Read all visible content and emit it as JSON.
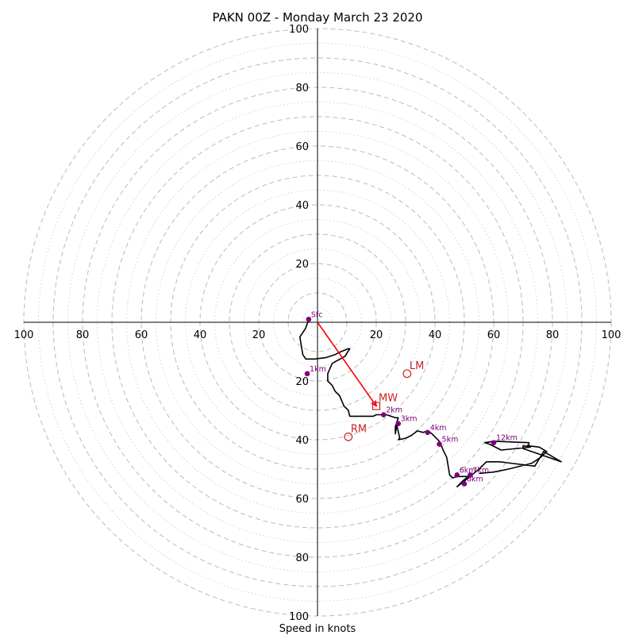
{
  "chart_data": {
    "type": "line",
    "title": "PAKN 00Z - Monday March 23 2020",
    "xlabel": "Speed in knots",
    "ylabel": "",
    "xlim": [
      -100,
      100
    ],
    "ylim": [
      -100,
      100
    ],
    "axis_tick_labels": {
      "right": [
        "20",
        "40",
        "60",
        "80",
        "100"
      ],
      "left": [
        "100",
        "80",
        "60",
        "40",
        "20"
      ],
      "up": [
        "20",
        "40",
        "60",
        "80",
        "100"
      ],
      "down": [
        "20",
        "40",
        "60",
        "80",
        "100"
      ]
    },
    "rings_dashed": [
      10,
      20,
      30,
      40,
      50,
      60,
      70,
      80,
      90,
      100
    ],
    "rings_dotted": [
      5,
      15,
      25,
      35,
      45,
      55,
      65,
      75,
      85,
      95
    ],
    "grid": true,
    "colors": {
      "trace": "#000000",
      "height_markers": "#800080",
      "motion": "#cc2222",
      "mean_wind_arrow": "#ff0000",
      "rings": "#bbbbbb"
    },
    "series": [
      {
        "type": "line",
        "points": [
          [
            -3,
            1
          ],
          [
            -4,
            -2
          ],
          [
            -6,
            -5
          ],
          [
            -5.5,
            -8
          ],
          [
            -5,
            -11
          ],
          [
            -4,
            -12.5
          ],
          [
            -1,
            -12.5
          ],
          [
            3,
            -12
          ],
          [
            6,
            -11
          ],
          [
            8,
            -10
          ],
          [
            10.5,
            -9
          ],
          [
            11,
            -9
          ],
          [
            10,
            -10.5
          ],
          [
            9.5,
            -11.5
          ],
          [
            5,
            -14
          ],
          [
            3.5,
            -17.5
          ],
          [
            3.5,
            -20
          ],
          [
            5,
            -21.5
          ],
          [
            6,
            -23.5
          ],
          [
            7.5,
            -25
          ],
          [
            9,
            -28.5
          ],
          [
            10.5,
            -30
          ],
          [
            11,
            -32
          ],
          [
            15,
            -32
          ],
          [
            19,
            -32
          ],
          [
            20,
            -31.5
          ],
          [
            22.5,
            -31.5
          ],
          [
            23.5,
            -31.5
          ],
          [
            26.5,
            -32.5
          ],
          [
            27.5,
            -32.5
          ],
          [
            26.5,
            -35.5
          ],
          [
            26.5,
            -38
          ],
          [
            27,
            -35
          ],
          [
            28,
            -39.5
          ],
          [
            27.5,
            -40
          ],
          [
            30,
            -39.5
          ],
          [
            32,
            -38.5
          ],
          [
            34,
            -37
          ],
          [
            36,
            -37.5
          ],
          [
            37.5,
            -37
          ],
          [
            39,
            -38
          ],
          [
            41.5,
            -40.5
          ],
          [
            43,
            -44
          ],
          [
            44,
            -46
          ],
          [
            45,
            -52
          ],
          [
            46,
            -53
          ],
          [
            47.5,
            -52.5
          ],
          [
            51,
            -52.5
          ],
          [
            52,
            -52
          ],
          [
            49.5,
            -54
          ],
          [
            47.5,
            -56
          ],
          [
            49.5,
            -54.5
          ],
          [
            55,
            -50
          ],
          [
            57.5,
            -47.5
          ],
          [
            60,
            -47.5
          ],
          [
            62,
            -47.5
          ],
          [
            74,
            -49
          ],
          [
            77,
            -44
          ],
          [
            83,
            -47.5
          ],
          [
            70,
            -43
          ],
          [
            70,
            -42
          ],
          [
            72.5,
            -42.5
          ],
          [
            62.5,
            -43.5
          ],
          [
            58.5,
            -41.5
          ],
          [
            57,
            -41
          ],
          [
            60,
            -40.5
          ],
          [
            72,
            -41
          ],
          [
            72,
            -41.5
          ],
          [
            71.5,
            -42
          ],
          [
            75.5,
            -42.5
          ],
          [
            78,
            -44
          ],
          [
            76,
            -46
          ],
          [
            73,
            -48
          ],
          [
            65,
            -50
          ],
          [
            60,
            -51
          ],
          [
            55,
            -51.5
          ]
        ]
      }
    ],
    "height_markers": [
      {
        "label": "Sfc",
        "u": -3,
        "v": 1
      },
      {
        "label": "1km",
        "u": -3.5,
        "v": -17.5
      },
      {
        "label": "2km",
        "u": 22.5,
        "v": -31.5
      },
      {
        "label": "3km",
        "u": 27.5,
        "v": -34.5
      },
      {
        "label": "4km",
        "u": 37.5,
        "v": -37.5
      },
      {
        "label": "5km",
        "u": 41.5,
        "v": -41.5
      },
      {
        "label": "6km",
        "u": 47.5,
        "v": -52
      },
      {
        "label": "7km",
        "u": 52,
        "v": -52
      },
      {
        "label": "8km",
        "u": 50,
        "v": -55
      },
      {
        "label": "12km",
        "u": 60,
        "v": -41
      }
    ],
    "storm_motion": {
      "LM": {
        "label": "LM",
        "u": 30.5,
        "v": -17.5
      },
      "RM": {
        "label": "RM",
        "u": 10.5,
        "v": -39
      },
      "MW": {
        "label": "MW",
        "u": 20,
        "v": -28.5
      }
    }
  }
}
